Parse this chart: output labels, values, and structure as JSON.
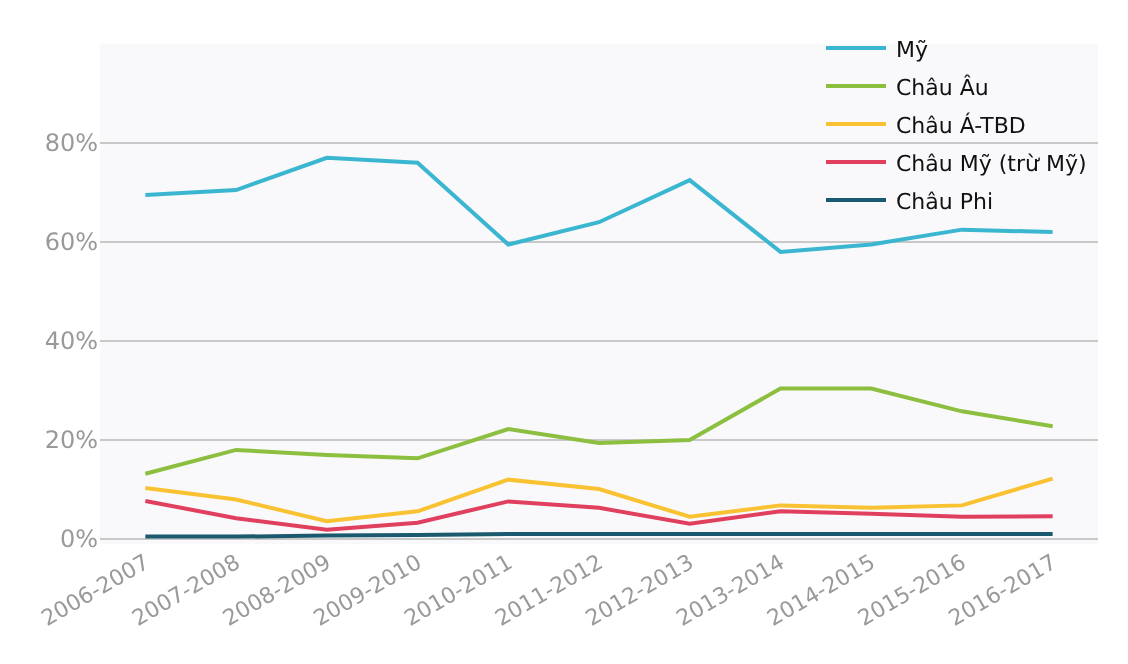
{
  "chart_data": {
    "type": "line",
    "categories": [
      "2006-2007",
      "2007-2008",
      "2008-2009",
      "2009-2010",
      "2010-2011",
      "2011-2012",
      "2012-2013",
      "2013-2014",
      "2014-2015",
      "2015-2016",
      "2016-2017"
    ],
    "series": [
      {
        "name": "Mỹ",
        "color": "#3bb6d0",
        "values": [
          69.5,
          70.5,
          77,
          76,
          59.5,
          64,
          72.5,
          58,
          59.5,
          62.5,
          62
        ]
      },
      {
        "name": "Châu Âu",
        "color": "#8cbf3f",
        "values": [
          13.2,
          18,
          17,
          16.3,
          22.2,
          19.4,
          20,
          30.4,
          30.4,
          25.8,
          22.8
        ]
      },
      {
        "name": "Châu Á-TBD",
        "color": "#f9c232",
        "values": [
          10.3,
          8,
          3.6,
          5.6,
          12,
          10.1,
          4.5,
          6.8,
          6.3,
          6.8,
          12.2
        ]
      },
      {
        "name": "Châu Mỹ (trừ Mỹ)",
        "color": "#e0405e",
        "values": [
          7.7,
          4.2,
          1.9,
          3.3,
          7.6,
          6.3,
          3.1,
          5.6,
          5.1,
          4.5,
          4.6
        ]
      },
      {
        "name": "Châu Phi",
        "color": "#1b5a6e",
        "values": [
          0.5,
          0.5,
          0.7,
          0.8,
          1,
          1,
          1,
          1,
          1,
          1,
          1
        ]
      }
    ],
    "ylim": [
      -1,
      100
    ],
    "yticks": [
      {
        "value": 0,
        "label": "0%"
      },
      {
        "value": 20,
        "label": "20%"
      },
      {
        "value": 40,
        "label": "40%"
      },
      {
        "value": 60,
        "label": "60%"
      },
      {
        "value": 80,
        "label": "80%"
      }
    ],
    "grid": "y",
    "legend": "top right",
    "marker": "none",
    "line_style": "solid"
  }
}
